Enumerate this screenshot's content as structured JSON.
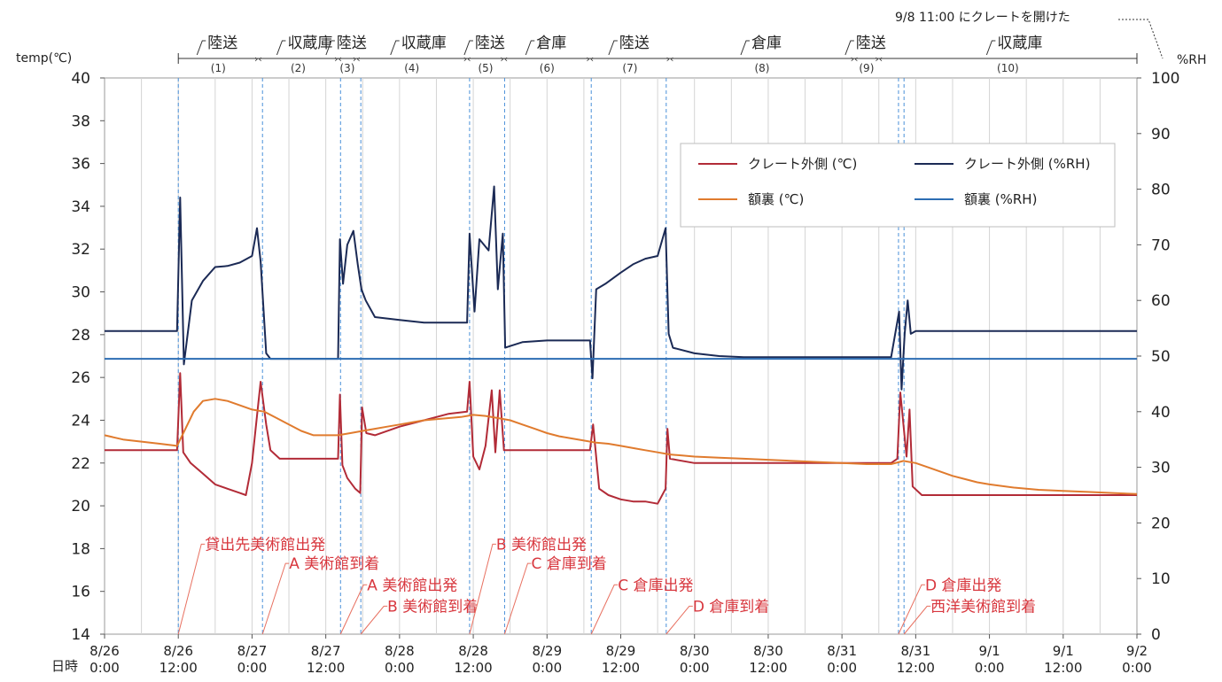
{
  "chart_data": {
    "type": "line",
    "title": "",
    "xlabel": "日時",
    "y_left_label": "temp(℃)",
    "y_right_label": "%RH",
    "ylim_left": [
      14,
      40
    ],
    "ylim_right": [
      0,
      100
    ],
    "y_left_ticks": [
      "14",
      "16",
      "18",
      "20",
      "22",
      "24",
      "26",
      "28",
      "30",
      "32",
      "34",
      "36",
      "38",
      "40"
    ],
    "y_right_ticks": [
      "0",
      "10",
      "20",
      "30",
      "40",
      "50",
      "60",
      "70",
      "80",
      "90",
      "100"
    ],
    "x_range_hours": [
      0,
      168
    ],
    "x_ticks": [
      {
        "line1": "8/26",
        "line2": "0:00",
        "hour": 0
      },
      {
        "line1": "8/26",
        "line2": "12:00",
        "hour": 12
      },
      {
        "line1": "8/27",
        "line2": "0:00",
        "hour": 24
      },
      {
        "line1": "8/27",
        "line2": "12:00",
        "hour": 36
      },
      {
        "line1": "8/28",
        "line2": "0:00",
        "hour": 48
      },
      {
        "line1": "8/28",
        "line2": "12:00",
        "hour": 60
      },
      {
        "line1": "8/29",
        "line2": "0:00",
        "hour": 72
      },
      {
        "line1": "8/29",
        "line2": "12:00",
        "hour": 84
      },
      {
        "line1": "8/30",
        "line2": "0:00",
        "hour": 96
      },
      {
        "line1": "8/30",
        "line2": "12:00",
        "hour": 108
      },
      {
        "line1": "8/31",
        "line2": "0:00",
        "hour": 120
      },
      {
        "line1": "8/31",
        "line2": "12:00",
        "hour": 132
      },
      {
        "line1": "9/1",
        "line2": "0:00",
        "hour": 144
      },
      {
        "line1": "9/1",
        "line2": "12:00",
        "hour": 156
      },
      {
        "line1": "9/2",
        "line2": "0:00",
        "hour": 168
      }
    ],
    "legend": [
      {
        "name": "クレート外側 (℃)",
        "color": "#b22b37"
      },
      {
        "name": "クレート外側 (%RH)",
        "color": "#1b2a55"
      },
      {
        "name": "額裏 (℃)",
        "color": "#e07b2e"
      },
      {
        "name": "額裏 (%RH)",
        "color": "#2c6db3"
      }
    ],
    "phases": [
      {
        "name": "陸送",
        "number": "(1)",
        "start": 12,
        "end": 25
      },
      {
        "name": "収蔵庫",
        "number": "(2)",
        "start": 25,
        "end": 38
      },
      {
        "name": "陸送",
        "number": "(3)",
        "start": 38,
        "end": 41
      },
      {
        "name": "収蔵庫",
        "number": "(4)",
        "start": 41,
        "end": 59
      },
      {
        "name": "陸送",
        "number": "(5)",
        "start": 59,
        "end": 65
      },
      {
        "name": "倉庫",
        "number": "(6)",
        "start": 65,
        "end": 79
      },
      {
        "name": "陸送",
        "number": "(7)",
        "start": 79,
        "end": 92
      },
      {
        "name": "倉庫",
        "number": "(8)",
        "start": 92,
        "end": 122
      },
      {
        "name": "陸送",
        "number": "(9)",
        "start": 122,
        "end": 126
      },
      {
        "name": "収蔵庫",
        "number": "(10)",
        "start": 126,
        "end": 168
      }
    ],
    "top_note": "9/8 11:00 にクレートを開けた",
    "event_lines_hours": [
      12,
      25.7,
      38.4,
      41.7,
      59.4,
      65.1,
      79.2,
      91.4,
      129.2,
      130.1
    ],
    "events": [
      {
        "label": "貸出先美術館出発",
        "hour": 12,
        "temp": 18.0
      },
      {
        "label": "A 美術館到着",
        "hour": 25.7,
        "temp": 17.1
      },
      {
        "label": "A 美術館出発",
        "hour": 38.4,
        "temp": 16.1
      },
      {
        "label": "B 美術館到着",
        "hour": 41.7,
        "temp": 15.1
      },
      {
        "label": "B 美術館出発",
        "hour": 59.4,
        "temp": 18.0
      },
      {
        "label": "C 倉庫到着",
        "hour": 65.1,
        "temp": 17.1
      },
      {
        "label": "C 倉庫出発",
        "hour": 79.2,
        "temp": 16.1
      },
      {
        "label": "D 倉庫到着",
        "hour": 91.4,
        "temp": 15.1
      },
      {
        "label": "D 倉庫出発",
        "hour": 129.2,
        "temp": 16.1
      },
      {
        "label": "西洋美術館到着",
        "hour": 130.1,
        "temp": 15.1
      }
    ],
    "series": [
      {
        "name": "クレート外側 (℃)",
        "axis": "left",
        "color": "#b22b37",
        "points": [
          [
            0,
            22.6
          ],
          [
            6,
            22.6
          ],
          [
            11.8,
            22.6
          ],
          [
            12.3,
            26.2
          ],
          [
            12.8,
            22.5
          ],
          [
            14,
            22
          ],
          [
            16,
            21.5
          ],
          [
            18,
            21
          ],
          [
            20,
            20.8
          ],
          [
            22,
            20.6
          ],
          [
            23,
            20.5
          ],
          [
            24,
            22
          ],
          [
            24.8,
            24.2
          ],
          [
            25.4,
            25.8
          ],
          [
            26.3,
            23.8
          ],
          [
            27,
            22.6
          ],
          [
            28.5,
            22.2
          ],
          [
            32,
            22.2
          ],
          [
            36,
            22.2
          ],
          [
            38,
            22.2
          ],
          [
            38.3,
            25.2
          ],
          [
            38.7,
            21.9
          ],
          [
            39.5,
            21.3
          ],
          [
            40.8,
            20.8
          ],
          [
            41.6,
            20.6
          ],
          [
            41.9,
            24.6
          ],
          [
            42.6,
            23.4
          ],
          [
            44,
            23.3
          ],
          [
            48,
            23.7
          ],
          [
            52,
            24
          ],
          [
            56,
            24.3
          ],
          [
            59,
            24.4
          ],
          [
            59.4,
            25.8
          ],
          [
            60,
            22.3
          ],
          [
            61,
            21.7
          ],
          [
            62,
            22.8
          ],
          [
            63,
            25.4
          ],
          [
            63.6,
            22.5
          ],
          [
            64.3,
            25.4
          ],
          [
            65,
            22.6
          ],
          [
            66.5,
            22.6
          ],
          [
            72,
            22.6
          ],
          [
            79,
            22.6
          ],
          [
            79.5,
            23.8
          ],
          [
            80.5,
            20.8
          ],
          [
            82,
            20.5
          ],
          [
            84,
            20.3
          ],
          [
            86,
            20.2
          ],
          [
            88,
            20.2
          ],
          [
            90,
            20.1
          ],
          [
            91.3,
            20.8
          ],
          [
            91.6,
            23.6
          ],
          [
            92,
            22.2
          ],
          [
            96,
            22
          ],
          [
            100,
            22
          ],
          [
            104,
            22
          ],
          [
            108,
            22
          ],
          [
            112,
            22
          ],
          [
            116,
            22
          ],
          [
            120,
            22
          ],
          [
            124,
            22
          ],
          [
            128,
            22
          ],
          [
            129,
            22.2
          ],
          [
            129.5,
            25.3
          ],
          [
            130,
            23.8
          ],
          [
            130.5,
            22.3
          ],
          [
            131,
            24.5
          ],
          [
            131.5,
            20.9
          ],
          [
            133,
            20.5
          ],
          [
            140,
            20.5
          ],
          [
            150,
            20.5
          ],
          [
            160,
            20.5
          ],
          [
            168,
            20.5
          ]
        ]
      },
      {
        "name": "クレート外側 (%RH)",
        "axis": "right",
        "color": "#1b2a55",
        "points": [
          [
            0,
            54.5
          ],
          [
            6,
            54.5
          ],
          [
            11.8,
            54.5
          ],
          [
            12.3,
            78.5
          ],
          [
            12.9,
            48.5
          ],
          [
            14.2,
            60
          ],
          [
            16,
            63.5
          ],
          [
            18,
            66
          ],
          [
            20,
            66.2
          ],
          [
            22,
            66.8
          ],
          [
            24,
            68
          ],
          [
            24.8,
            73
          ],
          [
            25.4,
            67
          ],
          [
            26.3,
            50.5
          ],
          [
            27,
            49.5
          ],
          [
            30,
            49.5
          ],
          [
            34,
            49.5
          ],
          [
            38,
            49.5
          ],
          [
            38.3,
            71
          ],
          [
            38.8,
            63
          ],
          [
            39.5,
            70
          ],
          [
            40.5,
            72.5
          ],
          [
            41.2,
            66.5
          ],
          [
            41.8,
            62
          ],
          [
            42.5,
            60
          ],
          [
            44,
            57
          ],
          [
            48,
            56.5
          ],
          [
            52,
            56
          ],
          [
            56,
            56
          ],
          [
            59,
            56
          ],
          [
            59.4,
            72
          ],
          [
            60.2,
            58
          ],
          [
            61,
            71
          ],
          [
            62.5,
            69
          ],
          [
            63.4,
            80.5
          ],
          [
            64,
            62
          ],
          [
            64.8,
            72
          ],
          [
            65.2,
            51.5
          ],
          [
            66,
            51.8
          ],
          [
            68,
            52.5
          ],
          [
            72,
            52.8
          ],
          [
            76,
            52.8
          ],
          [
            79,
            52.8
          ],
          [
            79.4,
            46
          ],
          [
            80,
            62
          ],
          [
            81.5,
            63
          ],
          [
            84,
            65
          ],
          [
            86,
            66.5
          ],
          [
            88,
            67.5
          ],
          [
            90,
            68
          ],
          [
            91.3,
            73
          ],
          [
            91.8,
            54
          ],
          [
            92.5,
            51.5
          ],
          [
            96,
            50.5
          ],
          [
            100,
            50
          ],
          [
            104,
            49.8
          ],
          [
            108,
            49.8
          ],
          [
            112,
            49.8
          ],
          [
            116,
            49.8
          ],
          [
            120,
            49.8
          ],
          [
            124,
            49.8
          ],
          [
            128,
            49.8
          ],
          [
            129.3,
            58
          ],
          [
            129.7,
            44
          ],
          [
            130.2,
            54
          ],
          [
            130.7,
            60
          ],
          [
            131.2,
            54
          ],
          [
            132,
            54.5
          ],
          [
            140,
            54.5
          ],
          [
            150,
            54.5
          ],
          [
            160,
            54.5
          ],
          [
            168,
            54.5
          ]
        ]
      },
      {
        "name": "額裏 (℃)",
        "axis": "left",
        "color": "#e07b2e",
        "points": [
          [
            0,
            23.3
          ],
          [
            3,
            23.1
          ],
          [
            6,
            23
          ],
          [
            9,
            22.9
          ],
          [
            11.8,
            22.8
          ],
          [
            13,
            23.5
          ],
          [
            14.5,
            24.4
          ],
          [
            16,
            24.9
          ],
          [
            18,
            25
          ],
          [
            20,
            24.9
          ],
          [
            22,
            24.7
          ],
          [
            24,
            24.5
          ],
          [
            26,
            24.4
          ],
          [
            28,
            24.1
          ],
          [
            30,
            23.8
          ],
          [
            32,
            23.5
          ],
          [
            34,
            23.3
          ],
          [
            36,
            23.3
          ],
          [
            38,
            23.3
          ],
          [
            40,
            23.4
          ],
          [
            42,
            23.5
          ],
          [
            44,
            23.6
          ],
          [
            46,
            23.7
          ],
          [
            48,
            23.8
          ],
          [
            50,
            23.9
          ],
          [
            52,
            24
          ],
          [
            54,
            24.05
          ],
          [
            56,
            24.1
          ],
          [
            58,
            24.15
          ],
          [
            59,
            24.2
          ],
          [
            60,
            24.25
          ],
          [
            62,
            24.2
          ],
          [
            64,
            24.1
          ],
          [
            66,
            24
          ],
          [
            68,
            23.8
          ],
          [
            70,
            23.6
          ],
          [
            72,
            23.4
          ],
          [
            74,
            23.25
          ],
          [
            76,
            23.15
          ],
          [
            78,
            23.05
          ],
          [
            80,
            22.95
          ],
          [
            82,
            22.9
          ],
          [
            84,
            22.8
          ],
          [
            86,
            22.7
          ],
          [
            88,
            22.6
          ],
          [
            90,
            22.5
          ],
          [
            92,
            22.4
          ],
          [
            94,
            22.35
          ],
          [
            96,
            22.3
          ],
          [
            100,
            22.25
          ],
          [
            104,
            22.2
          ],
          [
            108,
            22.15
          ],
          [
            112,
            22.1
          ],
          [
            116,
            22.05
          ],
          [
            120,
            22
          ],
          [
            124,
            21.95
          ],
          [
            128,
            21.95
          ],
          [
            130,
            22.1
          ],
          [
            132,
            22
          ],
          [
            134,
            21.8
          ],
          [
            136,
            21.6
          ],
          [
            138,
            21.4
          ],
          [
            140,
            21.25
          ],
          [
            142,
            21.1
          ],
          [
            144,
            21
          ],
          [
            148,
            20.85
          ],
          [
            152,
            20.75
          ],
          [
            156,
            20.7
          ],
          [
            160,
            20.65
          ],
          [
            164,
            20.6
          ],
          [
            168,
            20.55
          ]
        ]
      },
      {
        "name": "額裏 (%RH)",
        "axis": "right",
        "color": "#2c6db3",
        "points": [
          [
            0,
            49.5
          ],
          [
            168,
            49.5
          ]
        ]
      }
    ]
  }
}
